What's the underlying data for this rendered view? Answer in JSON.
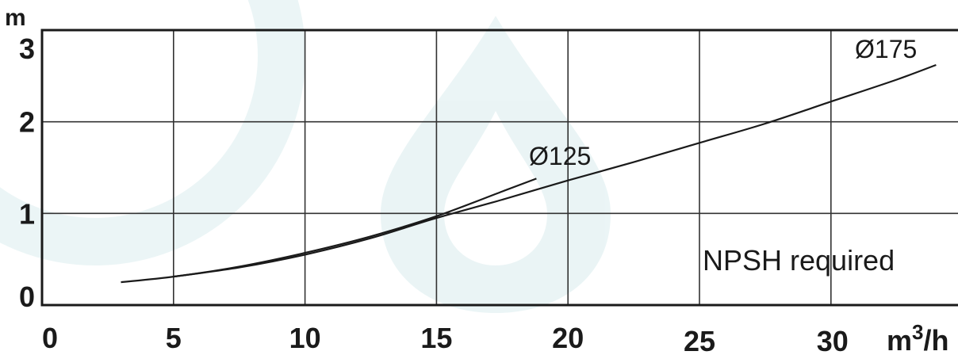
{
  "chart_data": {
    "type": "line",
    "title": "",
    "annotation": "NPSH required",
    "xlabel": "m³/h",
    "xlabel_base": "m",
    "xlabel_sup": "3",
    "xlabel_tail": "/h",
    "ylabel": "m",
    "xlim": [
      0,
      35
    ],
    "ylim": [
      0,
      3
    ],
    "x_ticks": [
      0,
      5,
      10,
      15,
      20,
      25,
      30
    ],
    "y_ticks": [
      0,
      1,
      2,
      3
    ],
    "grid": true,
    "series": [
      {
        "name": "Ø125",
        "x": [
          3,
          5,
          7.5,
          10,
          12.5,
          15,
          17.5,
          18.8
        ],
        "y": [
          0.25,
          0.31,
          0.42,
          0.57,
          0.75,
          0.97,
          1.24,
          1.38
        ]
      },
      {
        "name": "Ø175",
        "x": [
          5,
          7.5,
          10,
          12.5,
          15,
          17.5,
          20,
          22.5,
          25,
          27.5,
          30,
          32.5,
          34
        ],
        "y": [
          0.31,
          0.41,
          0.55,
          0.73,
          0.95,
          1.15,
          1.36,
          1.56,
          1.77,
          1.98,
          2.22,
          2.46,
          2.62
        ]
      }
    ]
  }
}
